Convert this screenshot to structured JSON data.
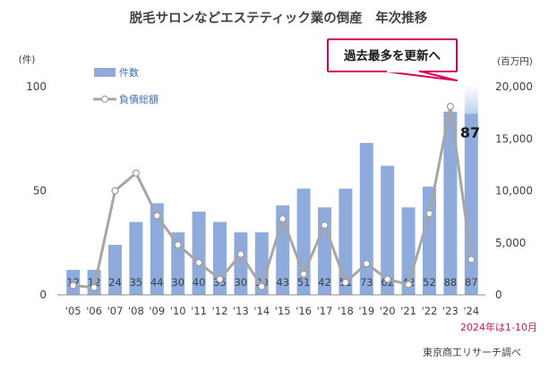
{
  "chart_data": {
    "type": "bar",
    "title": "脱毛サロンなどエステティック業の倒産　年次推移",
    "categories": [
      "'05",
      "'06",
      "'07",
      "'08",
      "'09",
      "'10",
      "'11",
      "'12",
      "'13",
      "'14",
      "'15",
      "'16",
      "'17",
      "'18",
      "'19",
      "'20",
      "'21",
      "'22",
      "'23",
      "'24"
    ],
    "series": [
      {
        "name": "件数",
        "axis": "left",
        "type": "bar",
        "color": "#8fabdc",
        "values": [
          12,
          12,
          24,
          35,
          44,
          30,
          40,
          35,
          30,
          30,
          43,
          51,
          42,
          51,
          73,
          62,
          42,
          52,
          88,
          87
        ]
      },
      {
        "name": "負債総額",
        "axis": "right",
        "type": "line",
        "color": "#a6a6a6",
        "values": [
          900,
          700,
          10000,
          11700,
          7600,
          4800,
          3100,
          1500,
          3900,
          800,
          7300,
          2000,
          6700,
          1200,
          3000,
          1500,
          1000,
          7800,
          18100,
          3400
        ]
      }
    ],
    "y_left": {
      "unit": "(件)",
      "range": [
        0,
        100
      ],
      "ticks": [
        "0",
        "50",
        "100"
      ]
    },
    "y_right": {
      "unit": "(百万円)",
      "range": [
        0,
        20000
      ],
      "ticks": [
        "0",
        "5,000",
        "10,000",
        "15,000",
        "20,000"
      ]
    },
    "legend": {
      "position": "top-left"
    },
    "grid": false,
    "annotations": {
      "callout": "過去最多を更新へ",
      "highlight_value": "87",
      "note": "2024年は1-10月",
      "source": "東京商工リサーチ調べ"
    }
  },
  "colors": {
    "bar": "#8fabdc",
    "line": "#a6a6a6",
    "callout_border": "#d6005c",
    "note": "#c2185b"
  }
}
